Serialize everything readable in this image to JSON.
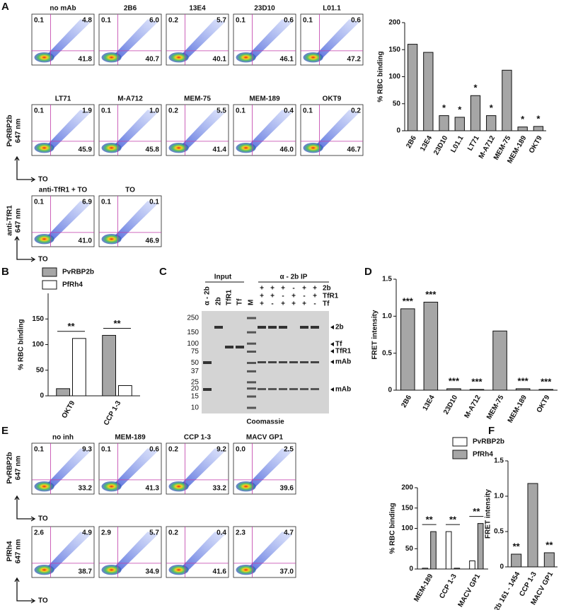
{
  "panel_labels": [
    "A",
    "B",
    "C",
    "D",
    "E",
    "F"
  ],
  "panel_A": {
    "y_axis_label": [
      "PvRBP2b",
      "647 nm"
    ],
    "x_axis_label": "TO",
    "plots": [
      {
        "title": "no mAb",
        "quadrants": [
          "0.1",
          "4.8",
          "41.8"
        ]
      },
      {
        "title": "2B6",
        "quadrants": [
          "0.1",
          "6.0",
          "40.7"
        ]
      },
      {
        "title": "13E4",
        "quadrants": [
          "0.2",
          "5.7",
          "40.1"
        ]
      },
      {
        "title": "23D10",
        "quadrants": [
          "0.1",
          "0.6",
          "46.1"
        ]
      },
      {
        "title": "L01.1",
        "quadrants": [
          "0.1",
          "0.6",
          "47.2"
        ]
      },
      {
        "title": "LT71",
        "quadrants": [
          "0.1",
          "1.9",
          "45.9"
        ]
      },
      {
        "title": "M-A712",
        "quadrants": [
          "0.1",
          "1.0",
          "45.8"
        ]
      },
      {
        "title": "MEM-75",
        "quadrants": [
          "0.2",
          "5.5",
          "41.4"
        ]
      },
      {
        "title": "MEM-189",
        "quadrants": [
          "0.1",
          "0.4",
          "46.0"
        ]
      },
      {
        "title": "OKT9",
        "quadrants": [
          "0.1",
          "0.2",
          "46.7"
        ]
      }
    ],
    "control_y_axis_label": [
      "anti-TfR1",
      "647 nm"
    ],
    "controls": [
      {
        "title": "anti-TfR1 + TO",
        "quadrants": [
          "0.1",
          "6.9",
          "41.0"
        ]
      },
      {
        "title": "TO",
        "quadrants": [
          "0.1",
          "0.1",
          "46.9"
        ]
      }
    ]
  },
  "panel_E": {
    "x_axis_label": "TO",
    "rows": [
      {
        "y_axis_label": [
          "PvRBP2b",
          "647 nm"
        ],
        "plots": [
          {
            "title": "no inh",
            "quadrants": [
              "0.1",
              "9.3",
              "33.2"
            ]
          },
          {
            "title": "MEM-189",
            "quadrants": [
              "0.1",
              "0.6",
              "41.3"
            ]
          },
          {
            "title": "CCP 1-3",
            "quadrants": [
              "0.2",
              "9.2",
              "33.2"
            ]
          },
          {
            "title": "MACV GP1",
            "quadrants": [
              "0.0",
              "2.5",
              "39.6"
            ]
          }
        ]
      },
      {
        "y_axis_label": [
          "PfRh4",
          "647 nm"
        ],
        "plots": [
          {
            "quadrants": [
              "2.6",
              "4.9",
              "38.7"
            ]
          },
          {
            "quadrants": [
              "2.9",
              "5.7",
              "34.9"
            ]
          },
          {
            "quadrants": [
              "0.2",
              "0.4",
              "41.6"
            ]
          },
          {
            "quadrants": [
              "2.3",
              "4.7",
              "37.0"
            ]
          }
        ]
      }
    ]
  },
  "gel": {
    "input_label": "Input",
    "ip_label": "α - 2b IP",
    "lanes": [
      "α - 2b",
      "2b",
      "TfR1",
      "Tf",
      "M"
    ],
    "ip_rows": [
      {
        "name": "2b",
        "signs": [
          "+",
          "+",
          "+",
          "-",
          "+",
          "+"
        ]
      },
      {
        "name": "TfR1",
        "signs": [
          "+",
          "+",
          "-",
          "+",
          "-",
          "+"
        ]
      },
      {
        "name": "Tf",
        "signs": [
          "+",
          "-",
          "+",
          "+",
          "+",
          "-"
        ]
      }
    ],
    "markers": [
      250,
      150,
      100,
      75,
      50,
      37,
      25,
      20,
      15,
      10
    ],
    "band_labels": [
      "2b",
      "Tf",
      "TfR1",
      "mAb",
      "mAb"
    ],
    "stain": "Coomassie"
  },
  "chart_data": [
    {
      "type": "bar",
      "y_label": "% RBC binding",
      "categories": [
        "2B6",
        "13E4",
        "23D10",
        "L01.1",
        "LT71",
        "M-A712",
        "MEM-75",
        "MEM-189",
        "OKT9"
      ],
      "values": [
        160,
        145,
        28,
        25,
        65,
        28,
        112,
        7,
        8
      ],
      "color": "#a6a6a6",
      "significance": [
        null,
        null,
        "*",
        "*",
        "*",
        "*",
        null,
        "*",
        "*"
      ],
      "ylim": [
        0,
        200
      ],
      "yticks": [
        0,
        50,
        100,
        150,
        200
      ]
    },
    {
      "type": "bar",
      "y_label": "% RBC binding",
      "categories": [
        "OKT9",
        "CCP 1-3"
      ],
      "series": [
        {
          "name": "PvRBP2b",
          "color": "#a6a6a6",
          "values": [
            14,
            118
          ]
        },
        {
          "name": "PfRh4",
          "color": "#ffffff",
          "values": [
            112,
            20
          ]
        }
      ],
      "significance": [
        "**",
        "**"
      ],
      "ylim": [
        0,
        200
      ],
      "yticks": [
        0,
        50,
        100,
        150
      ]
    },
    {
      "type": "bar",
      "y_label": "FRET intensity",
      "categories": [
        "2B6",
        "13E4",
        "23D10",
        "M-A712",
        "MEM-75",
        "MEM-189",
        "OKT9"
      ],
      "values": [
        1.1,
        1.19,
        0.02,
        0.01,
        0.8,
        0.02,
        0.01
      ],
      "color": "#a6a6a6",
      "significance": [
        "***",
        "***",
        "***",
        "***",
        null,
        "***",
        "***"
      ],
      "ylim": [
        0,
        1.5
      ],
      "yticks": [
        0,
        0.5,
        {
          "value": 1,
          "label": "1.0"
        },
        1.5
      ]
    },
    {
      "type": "bar",
      "y_label": "% RBC binding",
      "categories": [
        "MEM-189",
        "CCP 1-3",
        "MACV GP1"
      ],
      "series": [
        {
          "name": "PvRBP2b",
          "color": "#ffffff",
          "values": [
            2,
            92,
            20
          ]
        },
        {
          "name": "PfRh4",
          "color": "#a6a6a6",
          "values": [
            92,
            2,
            112
          ]
        }
      ],
      "significance": [
        "**",
        "**",
        "**"
      ],
      "ylim": [
        0,
        200
      ],
      "yticks": [
        0,
        50,
        100,
        150,
        200
      ]
    },
    {
      "type": "bar",
      "y_label": "FRET intensity",
      "categories": [
        "2b 161 - 1454",
        "CCP 1-3",
        "MACV GP1"
      ],
      "values": [
        0.18,
        1.18,
        0.2
      ],
      "color": "#a6a6a6",
      "significance": [
        "**",
        null,
        "**"
      ],
      "ylim": [
        0,
        1.5
      ],
      "yticks": [
        0,
        0.5,
        {
          "value": 1,
          "label": "1.0"
        },
        1.5
      ]
    }
  ]
}
